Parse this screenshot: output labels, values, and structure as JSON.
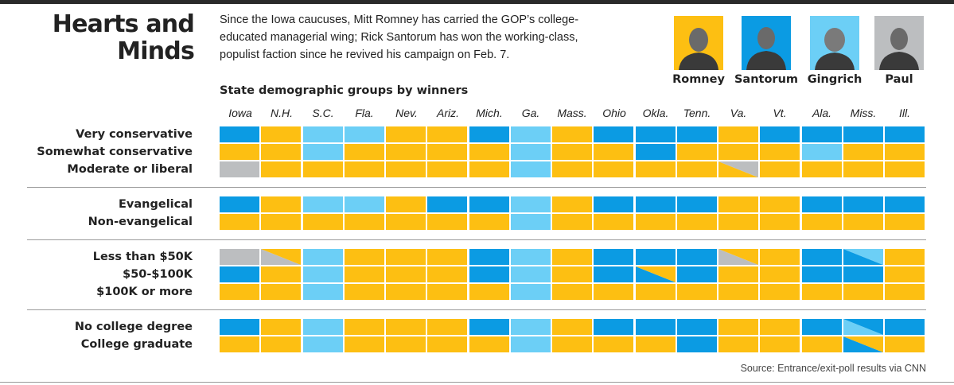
{
  "title_lines": [
    "Hearts and",
    "Minds"
  ],
  "intro_lines": [
    "Since the Iowa caucuses, Mitt Romney has carried the GOP’s college-",
    "educated managerial wing; Rick Santorum has won the working-class,",
    "populist faction since he revived his campaign on Feb. 7."
  ],
  "subtitle": "State demographic groups by winners",
  "source": "Source: Entrance/exit-poll results via CNN",
  "colors": {
    "Romney": "#fdbf12",
    "Santorum": "#0b9be3",
    "Gingrich": "#6ccff6",
    "Paul": "#bcbec0",
    "background": "#ffffff"
  },
  "candidates": [
    {
      "key": "R",
      "name": "Romney",
      "color": "#fdbf12"
    },
    {
      "key": "S",
      "name": "Santorum",
      "color": "#0b9be3"
    },
    {
      "key": "G",
      "name": "Gingrich",
      "color": "#6ccff6"
    },
    {
      "key": "P",
      "name": "Paul",
      "color": "#bcbec0"
    }
  ],
  "chart_data": {
    "type": "table",
    "title": "State demographic groups by winners",
    "columns": [
      "Iowa",
      "N.H.",
      "S.C.",
      "Fla.",
      "Nev.",
      "Ariz.",
      "Mich.",
      "Ga.",
      "Mass.",
      "Ohio",
      "Okla.",
      "Tenn.",
      "Va.",
      "Vt.",
      "Ala.",
      "Miss.",
      "Ill."
    ],
    "encoding": {
      "R": "Romney",
      "S": "Santorum",
      "G": "Gingrich",
      "P": "Paul",
      "X/Y": "split between X and Y"
    },
    "groups": [
      {
        "rows": [
          {
            "label": "Very conservative",
            "values": [
              "S",
              "R",
              "G",
              "G",
              "R",
              "R",
              "S",
              "G",
              "R",
              "S",
              "S",
              "S",
              "R",
              "S",
              "S",
              "S",
              "S"
            ]
          },
          {
            "label": "Somewhat conservative",
            "values": [
              "R",
              "R",
              "G",
              "R",
              "R",
              "R",
              "R",
              "G",
              "R",
              "R",
              "S",
              "R",
              "R",
              "R",
              "G",
              "R",
              "R"
            ]
          },
          {
            "label": "Moderate or liberal",
            "values": [
              "P",
              "R",
              "R",
              "R",
              "R",
              "R",
              "R",
              "G",
              "R",
              "R",
              "R",
              "R",
              "R/P",
              "R",
              "R",
              "R",
              "R"
            ]
          }
        ]
      },
      {
        "rows": [
          {
            "label": "Evangelical",
            "values": [
              "S",
              "R",
              "G",
              "G",
              "R",
              "S",
              "S",
              "G",
              "R",
              "S",
              "S",
              "S",
              "R",
              "R",
              "S",
              "S",
              "S"
            ]
          },
          {
            "label": "Non-evangelical",
            "values": [
              "R",
              "R",
              "R",
              "R",
              "R",
              "R",
              "R",
              "G",
              "R",
              "R",
              "R",
              "R",
              "R",
              "R",
              "R",
              "R",
              "R"
            ]
          }
        ]
      },
      {
        "rows": [
          {
            "label": "Less than $50K",
            "values": [
              "P",
              "P/R",
              "G",
              "R",
              "R",
              "R",
              "S",
              "G",
              "R",
              "S",
              "S",
              "S",
              "P/R",
              "R",
              "S",
              "S/G",
              "R"
            ]
          },
          {
            "label": "$50-$100K",
            "values": [
              "S",
              "R",
              "G",
              "R",
              "R",
              "R",
              "S",
              "G",
              "R",
              "S",
              "S/R",
              "S",
              "R",
              "R",
              "S",
              "S",
              "R"
            ]
          },
          {
            "label": "$100K or more",
            "values": [
              "R",
              "R",
              "G",
              "R",
              "R",
              "R",
              "R",
              "G",
              "R",
              "R",
              "R",
              "R",
              "R",
              "R",
              "R",
              "R",
              "R"
            ]
          }
        ]
      },
      {
        "rows": [
          {
            "label": "No college degree",
            "values": [
              "S",
              "R",
              "G",
              "R",
              "R",
              "R",
              "S",
              "G",
              "R",
              "S",
              "S",
              "S",
              "R",
              "R",
              "S",
              "G/S",
              "S"
            ]
          },
          {
            "label": "College graduate",
            "values": [
              "R",
              "R",
              "G",
              "R",
              "R",
              "R",
              "R",
              "G",
              "R",
              "R",
              "R",
              "S",
              "R",
              "R",
              "R",
              "S/R",
              "R"
            ]
          }
        ]
      }
    ]
  }
}
